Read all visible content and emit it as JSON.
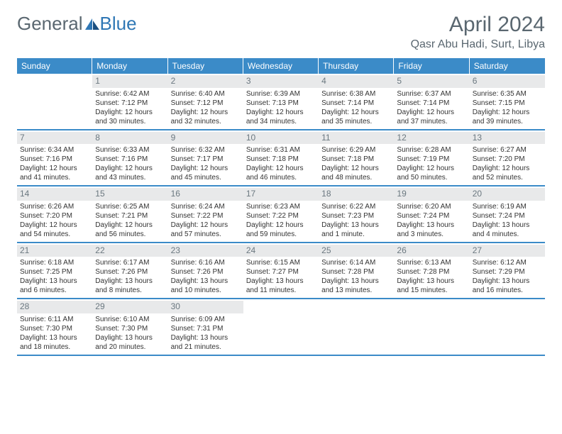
{
  "logo": {
    "text1": "General",
    "text2": "Blue"
  },
  "title": "April 2024",
  "location": "Qasr Abu Hadi, Surt, Libya",
  "colors": {
    "header_bg": "#3b8bc8",
    "header_fg": "#ffffff",
    "daynum_bg": "#e8e9ea",
    "daynum_fg": "#6b7880",
    "text": "#333333",
    "logo_gray": "#5a6770",
    "logo_blue": "#2f77b5",
    "border": "#3b8bc8"
  },
  "day_names": [
    "Sunday",
    "Monday",
    "Tuesday",
    "Wednesday",
    "Thursday",
    "Friday",
    "Saturday"
  ],
  "weeks": [
    [
      {
        "num": "",
        "sunrise": "",
        "sunset": "",
        "daylight": ""
      },
      {
        "num": "1",
        "sunrise": "Sunrise: 6:42 AM",
        "sunset": "Sunset: 7:12 PM",
        "daylight": "Daylight: 12 hours and 30 minutes."
      },
      {
        "num": "2",
        "sunrise": "Sunrise: 6:40 AM",
        "sunset": "Sunset: 7:12 PM",
        "daylight": "Daylight: 12 hours and 32 minutes."
      },
      {
        "num": "3",
        "sunrise": "Sunrise: 6:39 AM",
        "sunset": "Sunset: 7:13 PM",
        "daylight": "Daylight: 12 hours and 34 minutes."
      },
      {
        "num": "4",
        "sunrise": "Sunrise: 6:38 AM",
        "sunset": "Sunset: 7:14 PM",
        "daylight": "Daylight: 12 hours and 35 minutes."
      },
      {
        "num": "5",
        "sunrise": "Sunrise: 6:37 AM",
        "sunset": "Sunset: 7:14 PM",
        "daylight": "Daylight: 12 hours and 37 minutes."
      },
      {
        "num": "6",
        "sunrise": "Sunrise: 6:35 AM",
        "sunset": "Sunset: 7:15 PM",
        "daylight": "Daylight: 12 hours and 39 minutes."
      }
    ],
    [
      {
        "num": "7",
        "sunrise": "Sunrise: 6:34 AM",
        "sunset": "Sunset: 7:16 PM",
        "daylight": "Daylight: 12 hours and 41 minutes."
      },
      {
        "num": "8",
        "sunrise": "Sunrise: 6:33 AM",
        "sunset": "Sunset: 7:16 PM",
        "daylight": "Daylight: 12 hours and 43 minutes."
      },
      {
        "num": "9",
        "sunrise": "Sunrise: 6:32 AM",
        "sunset": "Sunset: 7:17 PM",
        "daylight": "Daylight: 12 hours and 45 minutes."
      },
      {
        "num": "10",
        "sunrise": "Sunrise: 6:31 AM",
        "sunset": "Sunset: 7:18 PM",
        "daylight": "Daylight: 12 hours and 46 minutes."
      },
      {
        "num": "11",
        "sunrise": "Sunrise: 6:29 AM",
        "sunset": "Sunset: 7:18 PM",
        "daylight": "Daylight: 12 hours and 48 minutes."
      },
      {
        "num": "12",
        "sunrise": "Sunrise: 6:28 AM",
        "sunset": "Sunset: 7:19 PM",
        "daylight": "Daylight: 12 hours and 50 minutes."
      },
      {
        "num": "13",
        "sunrise": "Sunrise: 6:27 AM",
        "sunset": "Sunset: 7:20 PM",
        "daylight": "Daylight: 12 hours and 52 minutes."
      }
    ],
    [
      {
        "num": "14",
        "sunrise": "Sunrise: 6:26 AM",
        "sunset": "Sunset: 7:20 PM",
        "daylight": "Daylight: 12 hours and 54 minutes."
      },
      {
        "num": "15",
        "sunrise": "Sunrise: 6:25 AM",
        "sunset": "Sunset: 7:21 PM",
        "daylight": "Daylight: 12 hours and 56 minutes."
      },
      {
        "num": "16",
        "sunrise": "Sunrise: 6:24 AM",
        "sunset": "Sunset: 7:22 PM",
        "daylight": "Daylight: 12 hours and 57 minutes."
      },
      {
        "num": "17",
        "sunrise": "Sunrise: 6:23 AM",
        "sunset": "Sunset: 7:22 PM",
        "daylight": "Daylight: 12 hours and 59 minutes."
      },
      {
        "num": "18",
        "sunrise": "Sunrise: 6:22 AM",
        "sunset": "Sunset: 7:23 PM",
        "daylight": "Daylight: 13 hours and 1 minute."
      },
      {
        "num": "19",
        "sunrise": "Sunrise: 6:20 AM",
        "sunset": "Sunset: 7:24 PM",
        "daylight": "Daylight: 13 hours and 3 minutes."
      },
      {
        "num": "20",
        "sunrise": "Sunrise: 6:19 AM",
        "sunset": "Sunset: 7:24 PM",
        "daylight": "Daylight: 13 hours and 4 minutes."
      }
    ],
    [
      {
        "num": "21",
        "sunrise": "Sunrise: 6:18 AM",
        "sunset": "Sunset: 7:25 PM",
        "daylight": "Daylight: 13 hours and 6 minutes."
      },
      {
        "num": "22",
        "sunrise": "Sunrise: 6:17 AM",
        "sunset": "Sunset: 7:26 PM",
        "daylight": "Daylight: 13 hours and 8 minutes."
      },
      {
        "num": "23",
        "sunrise": "Sunrise: 6:16 AM",
        "sunset": "Sunset: 7:26 PM",
        "daylight": "Daylight: 13 hours and 10 minutes."
      },
      {
        "num": "24",
        "sunrise": "Sunrise: 6:15 AM",
        "sunset": "Sunset: 7:27 PM",
        "daylight": "Daylight: 13 hours and 11 minutes."
      },
      {
        "num": "25",
        "sunrise": "Sunrise: 6:14 AM",
        "sunset": "Sunset: 7:28 PM",
        "daylight": "Daylight: 13 hours and 13 minutes."
      },
      {
        "num": "26",
        "sunrise": "Sunrise: 6:13 AM",
        "sunset": "Sunset: 7:28 PM",
        "daylight": "Daylight: 13 hours and 15 minutes."
      },
      {
        "num": "27",
        "sunrise": "Sunrise: 6:12 AM",
        "sunset": "Sunset: 7:29 PM",
        "daylight": "Daylight: 13 hours and 16 minutes."
      }
    ],
    [
      {
        "num": "28",
        "sunrise": "Sunrise: 6:11 AM",
        "sunset": "Sunset: 7:30 PM",
        "daylight": "Daylight: 13 hours and 18 minutes."
      },
      {
        "num": "29",
        "sunrise": "Sunrise: 6:10 AM",
        "sunset": "Sunset: 7:30 PM",
        "daylight": "Daylight: 13 hours and 20 minutes."
      },
      {
        "num": "30",
        "sunrise": "Sunrise: 6:09 AM",
        "sunset": "Sunset: 7:31 PM",
        "daylight": "Daylight: 13 hours and 21 minutes."
      },
      {
        "num": "",
        "sunrise": "",
        "sunset": "",
        "daylight": ""
      },
      {
        "num": "",
        "sunrise": "",
        "sunset": "",
        "daylight": ""
      },
      {
        "num": "",
        "sunrise": "",
        "sunset": "",
        "daylight": ""
      },
      {
        "num": "",
        "sunrise": "",
        "sunset": "",
        "daylight": ""
      }
    ]
  ]
}
